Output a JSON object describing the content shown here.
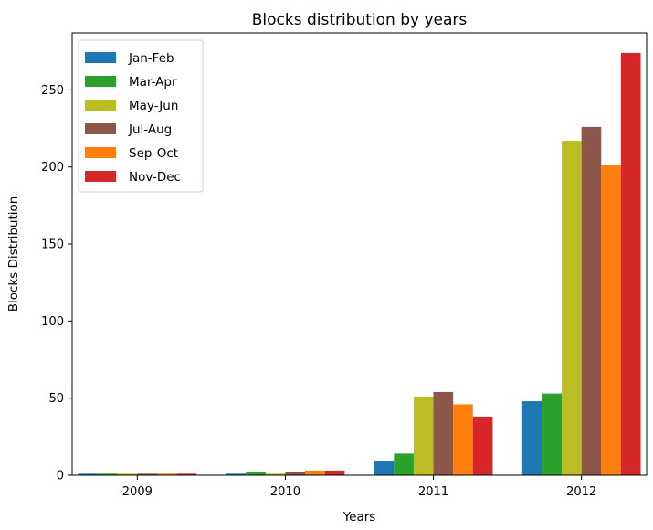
{
  "chart_data": {
    "type": "bar",
    "title": "Blocks distribution by years",
    "xlabel": "Years",
    "ylabel": "Blocks Distribution",
    "categories": [
      "2009",
      "2010",
      "2011",
      "2012"
    ],
    "yticks": [
      0,
      50,
      100,
      150,
      200,
      250
    ],
    "ylim": [
      0,
      287
    ],
    "grid": false,
    "legend_position": "top-left",
    "series": [
      {
        "name": "Jan-Feb",
        "color": "#1f77b4",
        "values": [
          1,
          1,
          9,
          48
        ]
      },
      {
        "name": "Mar-Apr",
        "color": "#2ca02c",
        "values": [
          1,
          2,
          14,
          53
        ]
      },
      {
        "name": "May-Jun",
        "color": "#bcbd22",
        "values": [
          1,
          1,
          51,
          217
        ]
      },
      {
        "name": "Jul-Aug",
        "color": "#8c564b",
        "values": [
          1,
          2,
          54,
          226
        ]
      },
      {
        "name": "Sep-Oct",
        "color": "#ff7f0e",
        "values": [
          1,
          3,
          46,
          201
        ]
      },
      {
        "name": "Nov-Dec",
        "color": "#d62728",
        "values": [
          1,
          3,
          38,
          274
        ]
      }
    ]
  }
}
